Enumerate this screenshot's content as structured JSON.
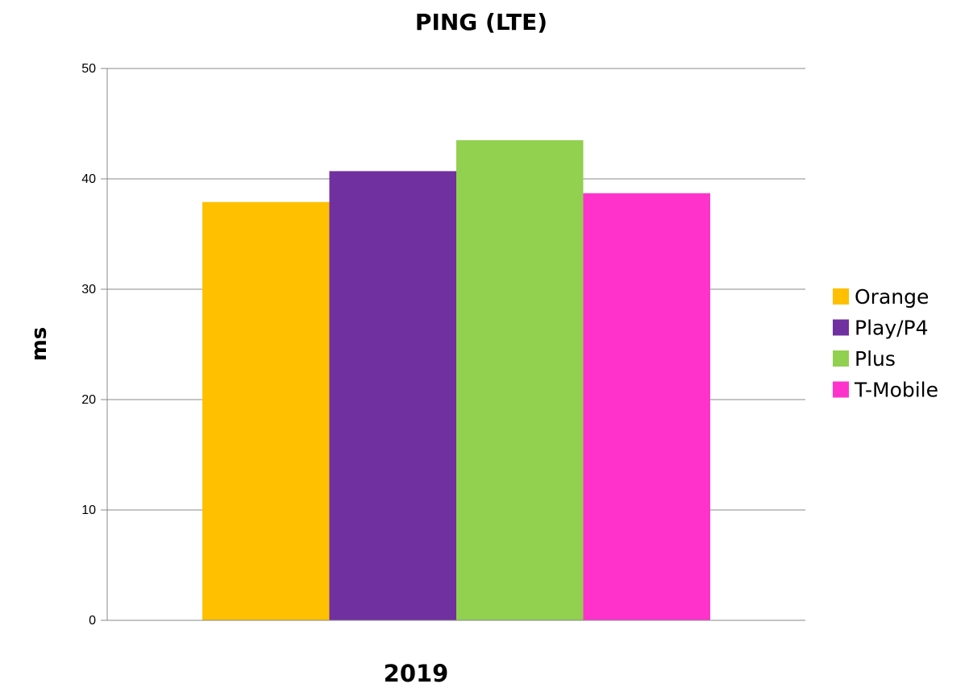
{
  "chart_data": {
    "type": "bar",
    "title": "PING (LTE)",
    "xlabel": "",
    "ylabel": "ms",
    "categories": [
      "2019"
    ],
    "series": [
      {
        "name": "Orange",
        "values": [
          37.9
        ],
        "color": "#ffc000"
      },
      {
        "name": "Play/P4",
        "values": [
          40.7
        ],
        "color": "#7030a0"
      },
      {
        "name": "Plus",
        "values": [
          43.5
        ],
        "color": "#92d050"
      },
      {
        "name": "T-Mobile",
        "values": [
          38.7
        ],
        "color": "#ff33cc"
      }
    ],
    "ylim": [
      0,
      50
    ],
    "yticks": [
      "0",
      "10",
      "20",
      "30",
      "40",
      "50"
    ],
    "grid": true,
    "legend": "right"
  }
}
